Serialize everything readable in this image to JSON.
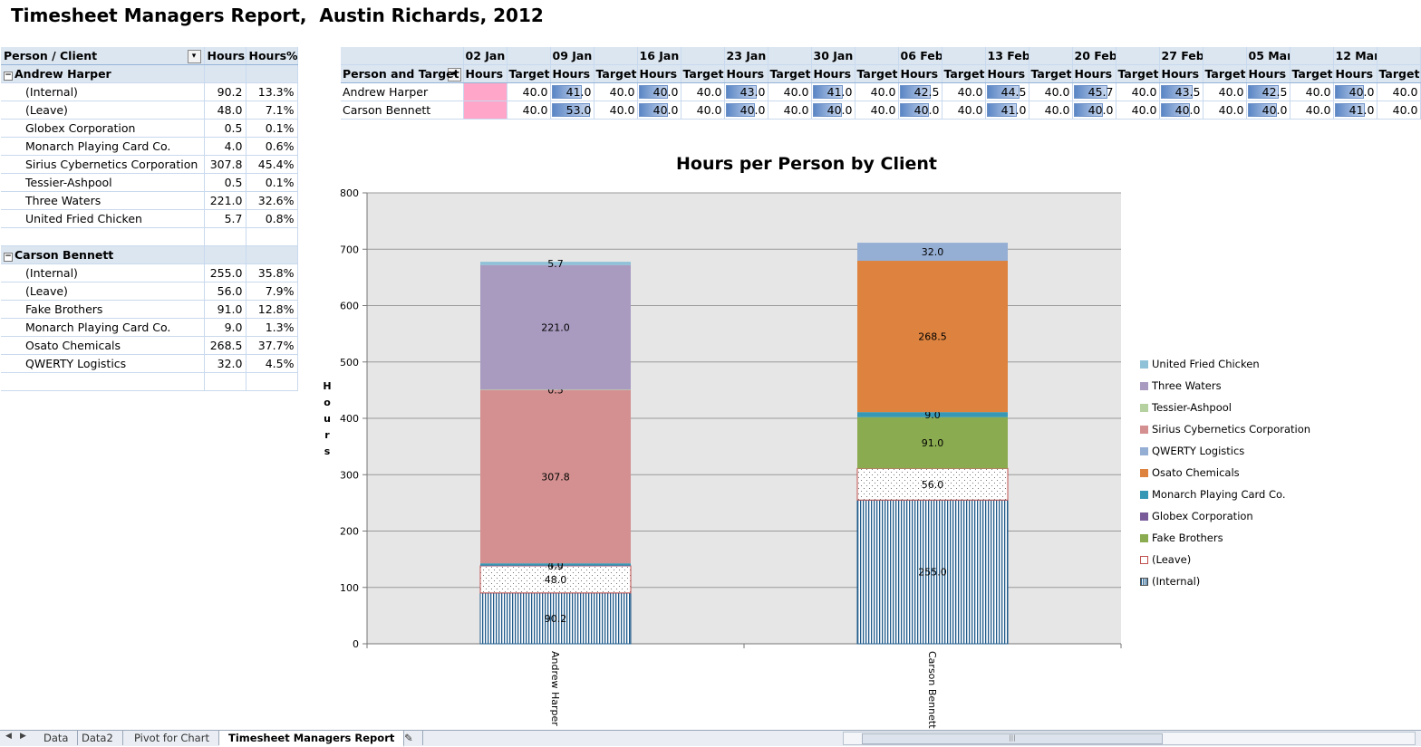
{
  "title": "Timesheet Managers Report,  Austin Richards, 2012",
  "left_table": {
    "headers": [
      "Person / Client",
      "Hours",
      "Hours%"
    ],
    "groups": [
      {
        "name": "Andrew Harper",
        "rows": [
          {
            "client": "(Internal)",
            "hours": "90.2",
            "pct": "13.3%"
          },
          {
            "client": "(Leave)",
            "hours": "48.0",
            "pct": "7.1%"
          },
          {
            "client": "Globex Corporation",
            "hours": "0.5",
            "pct": "0.1%"
          },
          {
            "client": "Monarch Playing Card Co.",
            "hours": "4.0",
            "pct": "0.6%"
          },
          {
            "client": "Sirius Cybernetics Corporation",
            "hours": "307.8",
            "pct": "45.4%"
          },
          {
            "client": "Tessier-Ashpool",
            "hours": "0.5",
            "pct": "0.1%"
          },
          {
            "client": "Three Waters",
            "hours": "221.0",
            "pct": "32.6%"
          },
          {
            "client": "United Fried Chicken",
            "hours": "5.7",
            "pct": "0.8%"
          }
        ]
      },
      {
        "name": "Carson Bennett",
        "rows": [
          {
            "client": "(Internal)",
            "hours": "255.0",
            "pct": "35.8%"
          },
          {
            "client": "(Leave)",
            "hours": "56.0",
            "pct": "7.9%"
          },
          {
            "client": "Fake Brothers",
            "hours": "91.0",
            "pct": "12.8%"
          },
          {
            "client": "Monarch Playing Card Co.",
            "hours": "9.0",
            "pct": "1.3%"
          },
          {
            "client": "Osato Chemicals",
            "hours": "268.5",
            "pct": "37.7%"
          },
          {
            "client": "QWERTY Logistics",
            "hours": "32.0",
            "pct": "4.5%"
          }
        ]
      }
    ]
  },
  "weekly_table": {
    "row_header": "Person and Target",
    "hours_label": "Hours",
    "target_label": "Target",
    "weeks": [
      "02 Jan",
      "09 Jan",
      "16 Jan",
      "23 Jan",
      "30 Jan",
      "06 Feb",
      "13 Feb",
      "20 Feb",
      "27 Feb",
      "05 Mar",
      "12 Mar"
    ],
    "people": [
      {
        "name": "Andrew Harper",
        "hours": [
          "",
          "41.0",
          "40.0",
          "43.0",
          "41.0",
          "42.5",
          "44.5",
          "45.7",
          "43.5",
          "42.5",
          "40.0"
        ],
        "targets": [
          "40.0",
          "40.0",
          "40.0",
          "40.0",
          "40.0",
          "40.0",
          "40.0",
          "40.0",
          "40.0",
          "40.0",
          "40.0"
        ]
      },
      {
        "name": "Carson Bennett",
        "hours": [
          "",
          "53.0",
          "40.0",
          "40.0",
          "40.0",
          "40.0",
          "41.0",
          "40.0",
          "40.0",
          "40.0",
          "41.0"
        ],
        "targets": [
          "40.0",
          "40.0",
          "40.0",
          "40.0",
          "40.0",
          "40.0",
          "40.0",
          "40.0",
          "40.0",
          "40.0",
          "40.0"
        ]
      }
    ],
    "data_bar_scale_max": 55
  },
  "chart_data": {
    "type": "bar",
    "stacked": true,
    "title": "Hours per Person by Client",
    "ylabel": "Hours",
    "xlabel": "",
    "ylim": [
      0,
      800
    ],
    "yticks": [
      0,
      100,
      200,
      300,
      400,
      500,
      600,
      700,
      800
    ],
    "grid": true,
    "legend_position": "right",
    "categories": [
      "Andrew Harper",
      "Carson Bennett"
    ],
    "series": [
      {
        "name": "(Internal)",
        "values": [
          90.2,
          255.0
        ],
        "color": "#ffffff",
        "pattern": "vertical-lines",
        "edge": "#1f5a8a"
      },
      {
        "name": "(Leave)",
        "values": [
          48.0,
          56.0
        ],
        "color": "#ffffff",
        "pattern": "dots",
        "edge": "#c0504d"
      },
      {
        "name": "Fake Brothers",
        "values": [
          0,
          91.0
        ],
        "color": "#8aab50"
      },
      {
        "name": "Globex Corporation",
        "values": [
          0.5,
          0
        ],
        "color": "#7a5b9a"
      },
      {
        "name": "Monarch Playing Card Co.",
        "values": [
          4.0,
          9.0
        ],
        "color": "#3798b5"
      },
      {
        "name": "Osato Chemicals",
        "values": [
          0,
          268.5
        ],
        "color": "#dd833f"
      },
      {
        "name": "QWERTY Logistics",
        "values": [
          0,
          32.0
        ],
        "color": "#95aed3"
      },
      {
        "name": "Sirius Cybernetics Corporation",
        "values": [
          307.8,
          0
        ],
        "color": "#d49090"
      },
      {
        "name": "Tessier-Ashpool",
        "values": [
          0.5,
          0
        ],
        "color": "#b6d1a0"
      },
      {
        "name": "Three Waters",
        "values": [
          221.0,
          0
        ],
        "color": "#a99bc0"
      },
      {
        "name": "United Fried Chicken",
        "values": [
          5.7,
          0
        ],
        "color": "#8fc2d8"
      }
    ],
    "legend_order": [
      "United Fried Chicken",
      "Three Waters",
      "Tessier-Ashpool",
      "Sirius Cybernetics Corporation",
      "QWERTY Logistics",
      "Osato Chemicals",
      "Monarch Playing Card Co.",
      "Globex Corporation",
      "Fake Brothers",
      "(Leave)",
      "(Internal)"
    ]
  },
  "sheet_tabs": [
    "Data",
    "Data2",
    "Pivot for Chart",
    "Timesheet Managers Report"
  ],
  "active_tab": "Timesheet Managers Report"
}
